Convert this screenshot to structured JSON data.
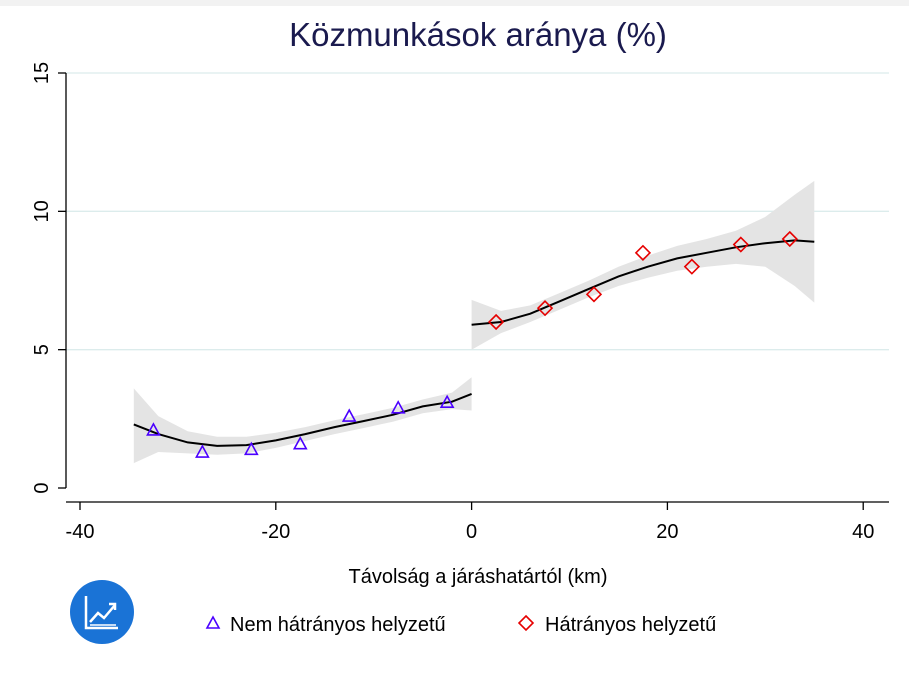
{
  "chart_data": {
    "type": "scatter",
    "title": "Közmunkások aránya (%)",
    "xlabel": "Távolság a járáshatártól (km)",
    "ylabel": "",
    "xlim": [
      -40,
      41
    ],
    "ylim": [
      0,
      15
    ],
    "xticks": [
      "-40",
      "-20",
      "0",
      "20",
      "40"
    ],
    "yticks": [
      "0",
      "5",
      "10",
      "15"
    ],
    "grid": "horizontal",
    "legend_position": "bottom",
    "series": [
      {
        "name": "Nem hátrányos helyzetű",
        "marker": "triangle",
        "color": "#4b00ff",
        "points": [
          {
            "x": -32.5,
            "y": 2.1
          },
          {
            "x": -27.5,
            "y": 1.3
          },
          {
            "x": -22.5,
            "y": 1.4
          },
          {
            "x": -17.5,
            "y": 1.6
          },
          {
            "x": -12.5,
            "y": 2.6
          },
          {
            "x": -7.5,
            "y": 2.9
          },
          {
            "x": -2.5,
            "y": 3.1
          }
        ],
        "fit": [
          {
            "x": -34.5,
            "y": 2.3
          },
          {
            "x": -32,
            "y": 1.95
          },
          {
            "x": -29,
            "y": 1.65
          },
          {
            "x": -26,
            "y": 1.52
          },
          {
            "x": -23,
            "y": 1.55
          },
          {
            "x": -20,
            "y": 1.72
          },
          {
            "x": -17,
            "y": 1.95
          },
          {
            "x": -14,
            "y": 2.2
          },
          {
            "x": -11,
            "y": 2.42
          },
          {
            "x": -8,
            "y": 2.65
          },
          {
            "x": -5,
            "y": 2.95
          },
          {
            "x": -2,
            "y": 3.12
          },
          {
            "x": 0,
            "y": 3.4
          }
        ],
        "ci_upper": [
          {
            "x": -34.5,
            "y": 3.6
          },
          {
            "x": -32,
            "y": 2.6
          },
          {
            "x": -29,
            "y": 2.05
          },
          {
            "x": -26,
            "y": 1.85
          },
          {
            "x": -23,
            "y": 1.85
          },
          {
            "x": -20,
            "y": 2.0
          },
          {
            "x": -17,
            "y": 2.2
          },
          {
            "x": -14,
            "y": 2.45
          },
          {
            "x": -11,
            "y": 2.67
          },
          {
            "x": -8,
            "y": 2.9
          },
          {
            "x": -5,
            "y": 3.2
          },
          {
            "x": -2,
            "y": 3.45
          },
          {
            "x": 0,
            "y": 4.0
          }
        ],
        "ci_lower": [
          {
            "x": -34.5,
            "y": 0.9
          },
          {
            "x": -32,
            "y": 1.3
          },
          {
            "x": -29,
            "y": 1.25
          },
          {
            "x": -26,
            "y": 1.2
          },
          {
            "x": -23,
            "y": 1.25
          },
          {
            "x": -20,
            "y": 1.45
          },
          {
            "x": -17,
            "y": 1.7
          },
          {
            "x": -14,
            "y": 1.95
          },
          {
            "x": -11,
            "y": 2.17
          },
          {
            "x": -8,
            "y": 2.4
          },
          {
            "x": -5,
            "y": 2.7
          },
          {
            "x": -2,
            "y": 2.85
          },
          {
            "x": 0,
            "y": 2.8
          }
        ]
      },
      {
        "name": "Hátrányos helyzetű",
        "marker": "diamond",
        "color": "#e60000",
        "points": [
          {
            "x": 2.5,
            "y": 6.0
          },
          {
            "x": 7.5,
            "y": 6.5
          },
          {
            "x": 12.5,
            "y": 7.0
          },
          {
            "x": 17.5,
            "y": 8.5
          },
          {
            "x": 22.5,
            "y": 8.0
          },
          {
            "x": 27.5,
            "y": 8.8
          },
          {
            "x": 32.5,
            "y": 9.0
          }
        ],
        "fit": [
          {
            "x": 0,
            "y": 5.9
          },
          {
            "x": 3,
            "y": 6.0
          },
          {
            "x": 6,
            "y": 6.3
          },
          {
            "x": 9,
            "y": 6.75
          },
          {
            "x": 12,
            "y": 7.2
          },
          {
            "x": 15,
            "y": 7.65
          },
          {
            "x": 18,
            "y": 8.0
          },
          {
            "x": 21,
            "y": 8.3
          },
          {
            "x": 24,
            "y": 8.5
          },
          {
            "x": 27,
            "y": 8.7
          },
          {
            "x": 30,
            "y": 8.85
          },
          {
            "x": 33,
            "y": 8.95
          },
          {
            "x": 35,
            "y": 8.9
          }
        ],
        "ci_upper": [
          {
            "x": 0,
            "y": 6.8
          },
          {
            "x": 3,
            "y": 6.4
          },
          {
            "x": 6,
            "y": 6.6
          },
          {
            "x": 9,
            "y": 7.05
          },
          {
            "x": 12,
            "y": 7.5
          },
          {
            "x": 15,
            "y": 8.0
          },
          {
            "x": 18,
            "y": 8.4
          },
          {
            "x": 21,
            "y": 8.75
          },
          {
            "x": 24,
            "y": 9.0
          },
          {
            "x": 27,
            "y": 9.3
          },
          {
            "x": 30,
            "y": 9.8
          },
          {
            "x": 33,
            "y": 10.6
          },
          {
            "x": 35,
            "y": 11.1
          }
        ],
        "ci_lower": [
          {
            "x": 0,
            "y": 5.0
          },
          {
            "x": 3,
            "y": 5.6
          },
          {
            "x": 6,
            "y": 6.0
          },
          {
            "x": 9,
            "y": 6.45
          },
          {
            "x": 12,
            "y": 6.9
          },
          {
            "x": 15,
            "y": 7.3
          },
          {
            "x": 18,
            "y": 7.6
          },
          {
            "x": 21,
            "y": 7.85
          },
          {
            "x": 24,
            "y": 8.0
          },
          {
            "x": 27,
            "y": 8.1
          },
          {
            "x": 30,
            "y": 8.0
          },
          {
            "x": 33,
            "y": 7.3
          },
          {
            "x": 35,
            "y": 6.7
          }
        ]
      }
    ]
  },
  "colors": {
    "title": "#1a1a4e",
    "fit_line": "#000000",
    "ci_band": "#e4e4e4",
    "grid": "#dcecec",
    "badge": "#1a73d6"
  },
  "badge": {
    "icon": "line-chart-icon"
  }
}
